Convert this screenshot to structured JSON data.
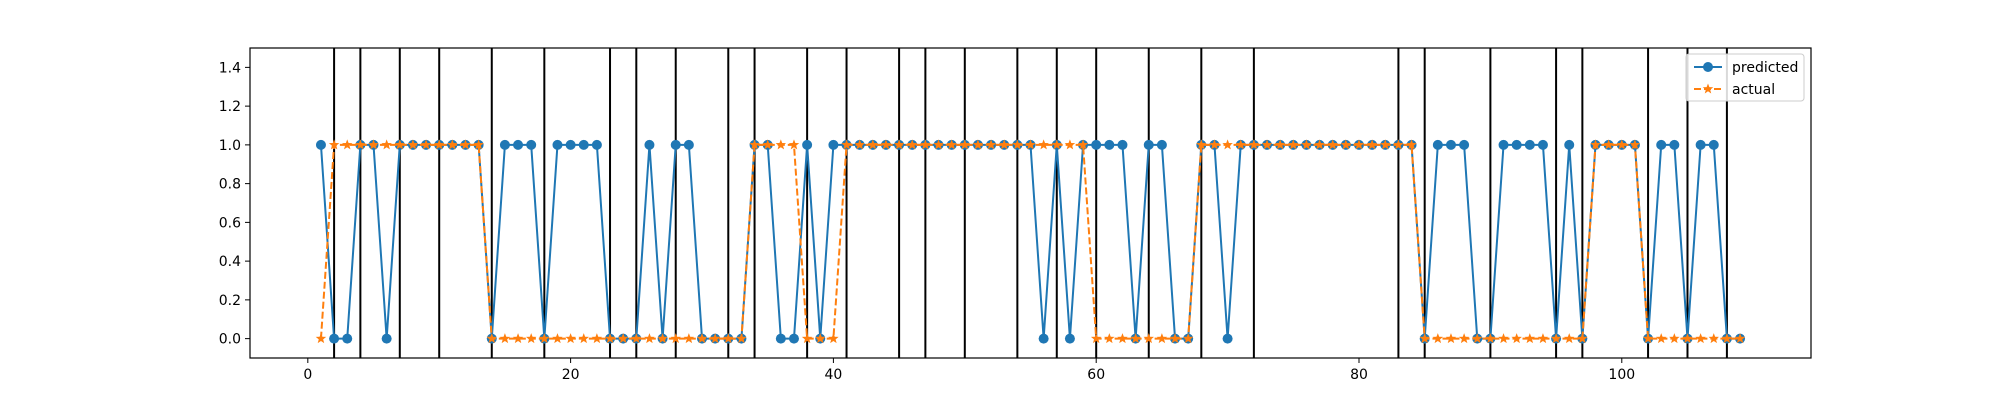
{
  "chart_data": {
    "type": "line",
    "title": "",
    "xlabel": "",
    "ylabel": "",
    "xlim": [
      -4.4,
      114.4
    ],
    "ylim": [
      -0.1,
      1.5
    ],
    "x_ticks": [
      0,
      20,
      40,
      60,
      80,
      100
    ],
    "x_tick_labels": [
      "0",
      "20",
      "40",
      "60",
      "80",
      "100"
    ],
    "y_ticks": [
      0.0,
      0.2,
      0.4,
      0.6,
      0.8,
      1.0,
      1.2,
      1.4
    ],
    "y_tick_labels": [
      "0.0",
      "0.2",
      "0.4",
      "0.6",
      "0.8",
      "1.0",
      "1.2",
      "1.4"
    ],
    "grid": false,
    "legend": {
      "position": "top-right"
    },
    "vertical_lines": [
      2,
      4,
      7,
      10,
      14,
      18,
      23,
      25,
      28,
      32,
      34,
      38,
      41,
      45,
      47,
      50,
      54,
      57,
      60,
      64,
      68,
      72,
      83,
      85,
      90,
      95,
      97,
      102,
      105,
      108
    ],
    "series": [
      {
        "name": "predicted",
        "color": "#1f77b4",
        "marker": "circle",
        "linestyle": "solid",
        "x_start": 1,
        "values": [
          1,
          0,
          0,
          1,
          1,
          0,
          1,
          1,
          1,
          1,
          1,
          1,
          1,
          0,
          1,
          1,
          1,
          0,
          1,
          1,
          1,
          1,
          0,
          0,
          0,
          1,
          0,
          1,
          1,
          0,
          0,
          0,
          0,
          1,
          1,
          0,
          0,
          1,
          0,
          1,
          1,
          1,
          1,
          1,
          1,
          1,
          1,
          1,
          1,
          1,
          1,
          1,
          1,
          1,
          1,
          0,
          1,
          0,
          1,
          1,
          1,
          1,
          0,
          1,
          1,
          0,
          0,
          1,
          1,
          0,
          1,
          1,
          1,
          1,
          1,
          1,
          1,
          1,
          1,
          1,
          1,
          1,
          1,
          1,
          0,
          1,
          1,
          1,
          0,
          0,
          1,
          1,
          1,
          1,
          0,
          1,
          0,
          1,
          1,
          1,
          1,
          0,
          1,
          1,
          0,
          1,
          1,
          0,
          0
        ]
      },
      {
        "name": "actual",
        "color": "#ff7f0e",
        "marker": "star",
        "linestyle": "dashed",
        "x_start": 1,
        "values": [
          0,
          1,
          1,
          1,
          1,
          1,
          1,
          1,
          1,
          1,
          1,
          1,
          1,
          0,
          0,
          0,
          0,
          0,
          0,
          0,
          0,
          0,
          0,
          0,
          0,
          0,
          0,
          0,
          0,
          0,
          0,
          0,
          0,
          1,
          1,
          1,
          1,
          0,
          0,
          0,
          1,
          1,
          1,
          1,
          1,
          1,
          1,
          1,
          1,
          1,
          1,
          1,
          1,
          1,
          1,
          1,
          1,
          1,
          1,
          0,
          0,
          0,
          0,
          0,
          0,
          0,
          0,
          1,
          1,
          1,
          1,
          1,
          1,
          1,
          1,
          1,
          1,
          1,
          1,
          1,
          1,
          1,
          1,
          1,
          0,
          0,
          0,
          0,
          0,
          0,
          0,
          0,
          0,
          0,
          0,
          0,
          0,
          1,
          1,
          1,
          1,
          0,
          0,
          0,
          0,
          0,
          0,
          0,
          0
        ]
      }
    ]
  }
}
